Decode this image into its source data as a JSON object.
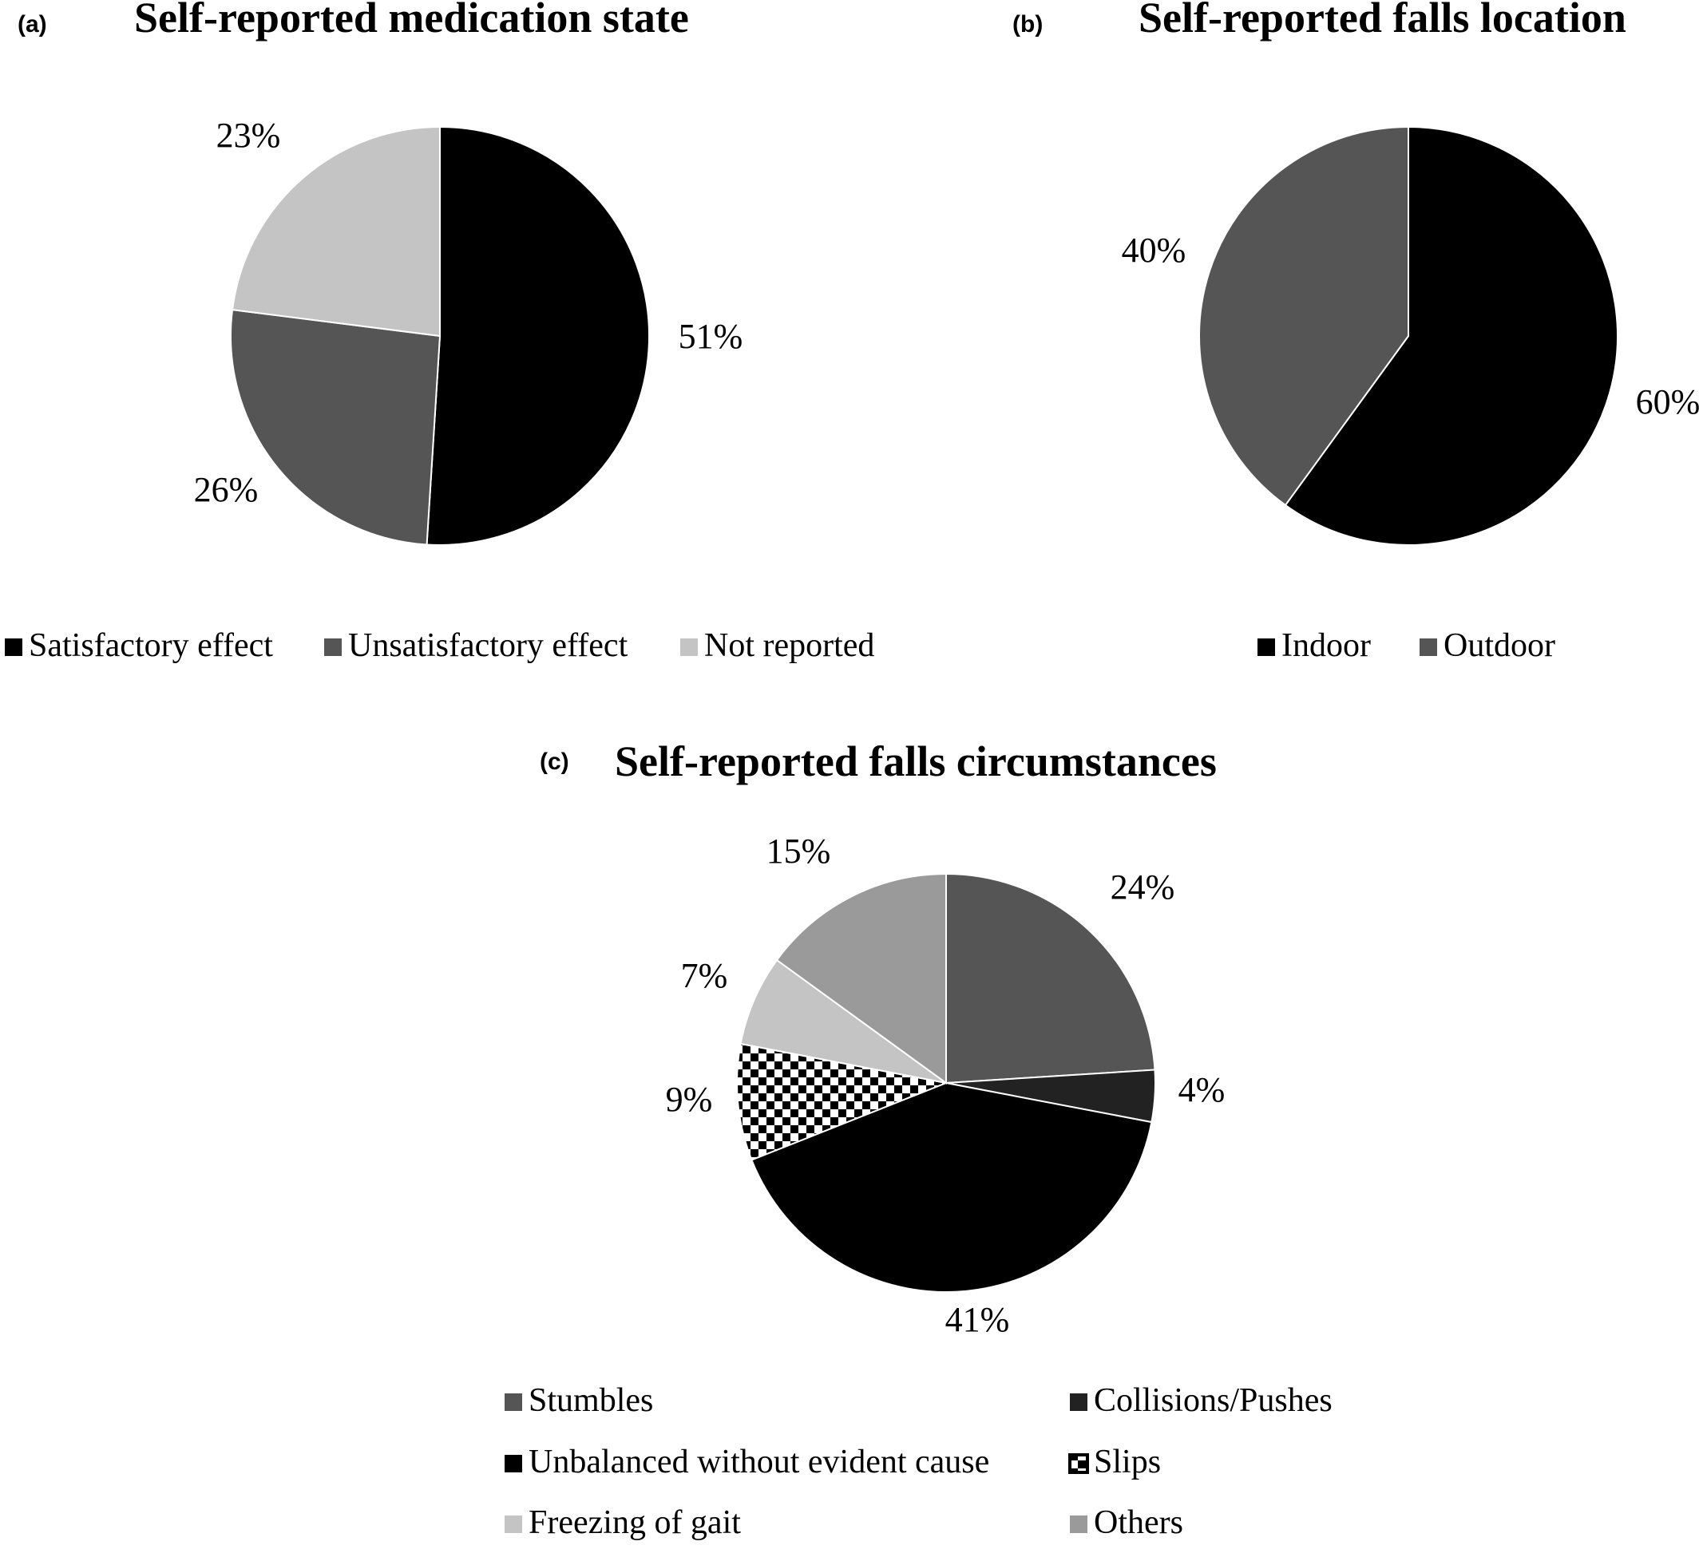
{
  "chart_data": [
    {
      "type": "pie",
      "panel_label": "(a)",
      "title": "Self-reported medication state",
      "slices": [
        {
          "name": "Satisfactory effect",
          "value": 51,
          "label": "51%",
          "color": "#000000"
        },
        {
          "name": "Unsatisfactory effect",
          "value": 26,
          "label": "26%",
          "color": "#555555"
        },
        {
          "name": "Not reported",
          "value": 23,
          "label": "23%",
          "color": "#c4c4c4"
        }
      ],
      "legend_placement": "bottom"
    },
    {
      "type": "pie",
      "panel_label": "(b)",
      "title": "Self-reported falls location",
      "slices": [
        {
          "name": "Indoor",
          "value": 60,
          "label": "60%",
          "color": "#000000"
        },
        {
          "name": "Outdoor",
          "value": 40,
          "label": "40%",
          "color": "#555555"
        }
      ],
      "legend_placement": "bottom"
    },
    {
      "type": "pie",
      "panel_label": "(c)",
      "title": "Self-reported falls circumstances",
      "slices": [
        {
          "name": "Stumbles",
          "value": 24,
          "label": "24%",
          "color": "#555555"
        },
        {
          "name": "Collisions/Pushes",
          "value": 4,
          "label": "4%",
          "color": "#222222"
        },
        {
          "name": "Unbalanced without evident cause",
          "value": 41,
          "label": "41%",
          "color": "#000000"
        },
        {
          "name": "Slips",
          "value": 9,
          "label": "9%",
          "color": "checkered"
        },
        {
          "name": "Freezing of gait",
          "value": 7,
          "label": "7%",
          "color": "#c4c4c4"
        },
        {
          "name": "Others",
          "value": 15,
          "label": "15%",
          "color": "#9a9a9a"
        }
      ],
      "legend_placement": "bottom"
    }
  ]
}
